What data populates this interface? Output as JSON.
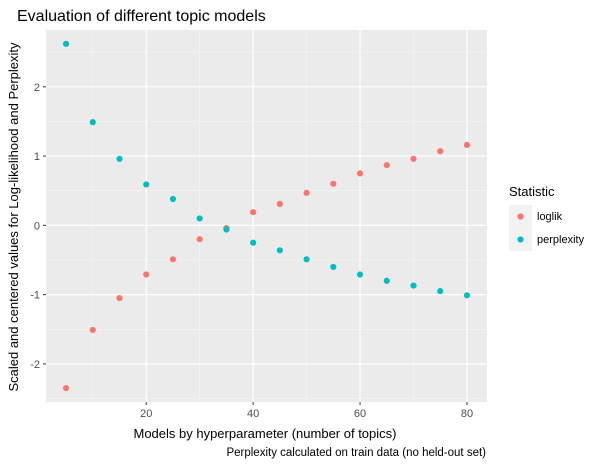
{
  "chart_data": {
    "type": "scatter",
    "title": "Evaluation of different topic models",
    "xlabel": "Models by hyperparameter (number of topics)",
    "ylabel": "Scaled and centered values for Log-likelihood and Perplexity",
    "caption": "Perplexity calculated on train data (no held-out set)",
    "xlim": [
      1.25,
      83.75
    ],
    "ylim": [
      -2.55,
      2.82
    ],
    "x_ticks": [
      20,
      40,
      60,
      80
    ],
    "y_ticks": [
      -2,
      -1,
      0,
      1,
      2
    ],
    "x_tick_labels": [
      "20",
      "40",
      "60",
      "80"
    ],
    "y_tick_labels": [
      "-2",
      "-1",
      "0",
      "1",
      "2"
    ],
    "x_minor_ticks": [
      10,
      30,
      50,
      70
    ],
    "y_minor_ticks": [
      -2.5,
      -1.5,
      -0.5,
      0.5,
      1.5,
      2.5
    ],
    "grid": true,
    "legend": {
      "title": "Statistic",
      "position": "right"
    },
    "x": [
      5,
      10,
      15,
      20,
      25,
      30,
      35,
      40,
      45,
      50,
      55,
      60,
      65,
      70,
      75,
      80
    ],
    "series": [
      {
        "name": "loglik",
        "color": "#F8766D",
        "values": [
          -2.35,
          -1.51,
          -1.05,
          -0.71,
          -0.49,
          -0.2,
          -0.04,
          0.19,
          0.31,
          0.47,
          0.6,
          0.75,
          0.87,
          0.96,
          1.07,
          1.16
        ]
      },
      {
        "name": "perplexity",
        "color": "#00BFC4",
        "values": [
          2.62,
          1.49,
          0.96,
          0.59,
          0.38,
          0.1,
          -0.06,
          -0.25,
          -0.36,
          -0.49,
          -0.6,
          -0.71,
          -0.8,
          -0.87,
          -0.95,
          -1.01
        ]
      }
    ]
  }
}
